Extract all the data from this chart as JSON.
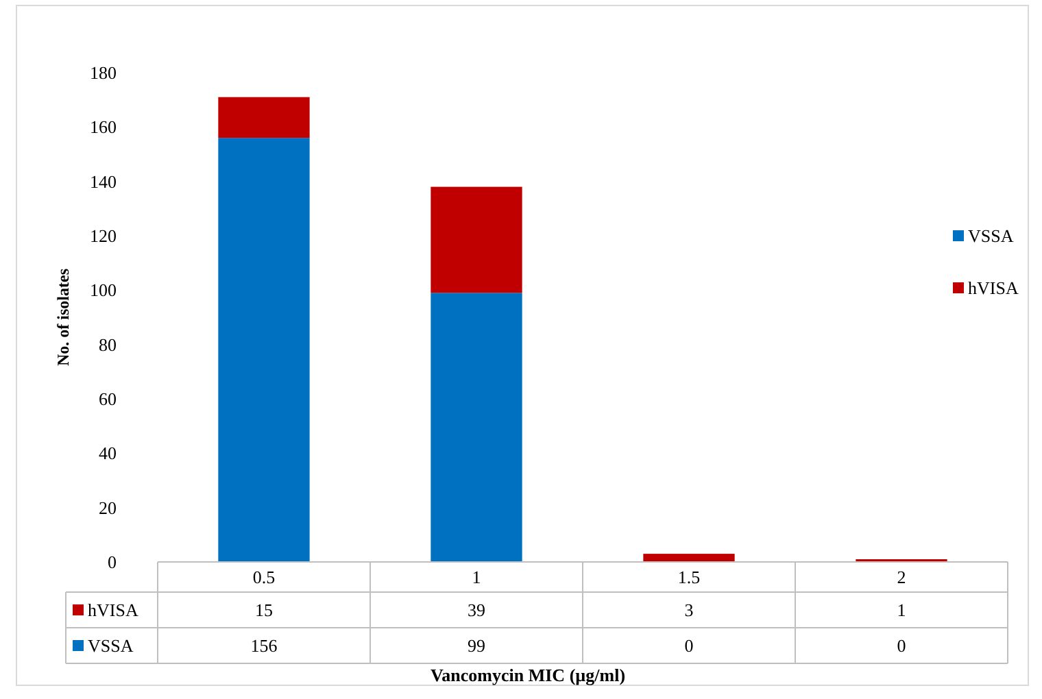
{
  "chart_data": {
    "type": "bar",
    "stacked": true,
    "xlabel": "Vancomycin MIC (µg/ml)",
    "ylabel": "No. of isolates",
    "categories": [
      "0.5",
      "1",
      "1.5",
      "2"
    ],
    "series": [
      {
        "name": "VSSA",
        "color": "#0070c0",
        "values": [
          156,
          99,
          0,
          0
        ]
      },
      {
        "name": "hVISA",
        "color": "#c00000",
        "values": [
          15,
          39,
          3,
          1
        ]
      }
    ],
    "ylim": [
      0,
      180
    ],
    "yticks": [
      0,
      20,
      40,
      60,
      80,
      100,
      120,
      140,
      160,
      180
    ],
    "grid": false,
    "legend": "right",
    "data_labels": true
  }
}
